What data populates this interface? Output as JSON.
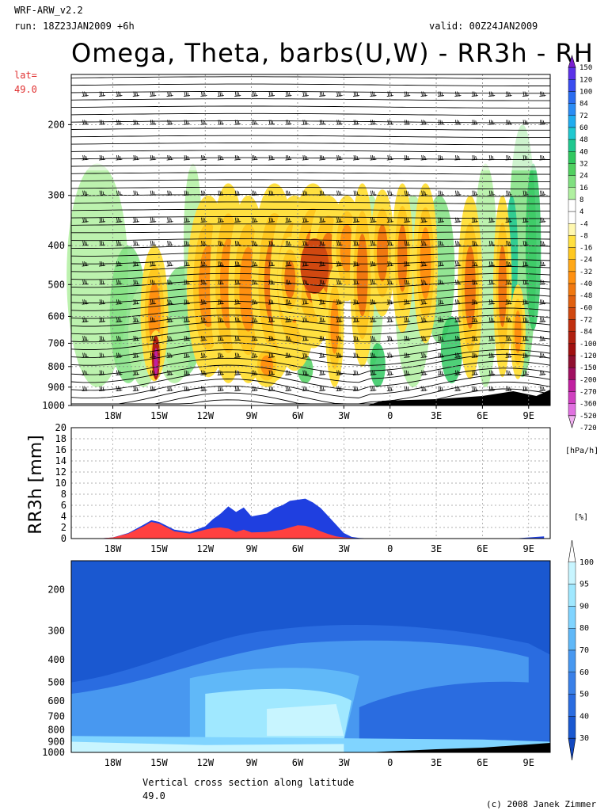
{
  "header": {
    "model": "WRF-ARW_v2.2",
    "run": "run: 18Z23JAN2009 +6h",
    "valid": "valid: 00Z24JAN2009",
    "title": "Omega, Theta, barbs(U,W) - RR3h - RH",
    "lat_label": "lat=",
    "lat_value": "49.0"
  },
  "footer": {
    "caption_line1": "Vertical cross section along latitude",
    "caption_line2": "49.0",
    "copyright": "(c) 2008 Janek Zimmer"
  },
  "colors": {
    "omega_pos_green": "#33cc66",
    "omega_neg_orange": "#ff9900",
    "rain_total": "#1f3fe0",
    "rain_conv": "#ff4040",
    "rh_dark": "#1a5fd0",
    "rh_light": "#c8f5ff"
  },
  "chart_data": [
    {
      "type": "heatmap",
      "title": "Omega, Theta, barbs(U,W)",
      "x_ticks": [
        "18W",
        "15W",
        "12W",
        "9W",
        "6W",
        "3W",
        "0",
        "3E",
        "6E",
        "9E"
      ],
      "y_ticks": [
        "200",
        "300",
        "400",
        "500",
        "600",
        "700",
        "800",
        "900",
        "1000"
      ],
      "y_scale": "log-pressure",
      "grid": true,
      "colorbar": {
        "unit": "[hPa/h]",
        "levels": [
          "150",
          "120",
          "100",
          "84",
          "72",
          "60",
          "48",
          "40",
          "32",
          "24",
          "16",
          "8",
          "4",
          "-4",
          "-8",
          "-16",
          "-24",
          "-32",
          "-40",
          "-48",
          "-60",
          "-72",
          "-84",
          "-100",
          "-120",
          "-150",
          "-200",
          "-270",
          "-360",
          "-520",
          "-720"
        ],
        "colors": [
          "#7a1fd0",
          "#5a32e8",
          "#3a4cf0",
          "#2a6cf0",
          "#2a8cf5",
          "#20acf0",
          "#20c8d0",
          "#20c890",
          "#30c860",
          "#50d060",
          "#80e080",
          "#b0f0a0",
          "#ffffff",
          "#ffffff",
          "#fff8b0",
          "#ffe040",
          "#ffc820",
          "#ffa818",
          "#ff9010",
          "#f07810",
          "#e06010",
          "#d04810",
          "#c03010",
          "#b02010",
          "#a01010",
          "#901030",
          "#a01060",
          "#c020a0",
          "#d040c0",
          "#e070e0",
          "#f0b0f0"
        ]
      }
    },
    {
      "type": "area",
      "ylabel": "RR3h [mm]",
      "ylim": [
        0,
        20
      ],
      "y_ticks": [
        "0",
        "2",
        "4",
        "6",
        "8",
        "10",
        "12",
        "14",
        "16",
        "18",
        "20"
      ],
      "x_ticks": [
        "18W",
        "15W",
        "12W",
        "9W",
        "6W",
        "3W",
        "0",
        "3E",
        "6E",
        "9E"
      ],
      "x": [
        -20,
        -19,
        -18,
        -17,
        -16,
        -15.5,
        -15,
        -14,
        -13,
        -12,
        -11.5,
        -11,
        -10.5,
        -10,
        -9.5,
        -9,
        -8,
        -7.5,
        -7,
        -6.5,
        -6,
        -5.5,
        -5,
        -4.5,
        -4,
        -3.5,
        -3,
        -2.5,
        -2,
        -1,
        0,
        3,
        6,
        8,
        9,
        10
      ],
      "series": [
        {
          "values": [
            0,
            0,
            0.2,
            1.0,
            2.5,
            3.3,
            3.0,
            1.6,
            1.2,
            2.2,
            3.5,
            4.5,
            5.8,
            4.8,
            5.6,
            4.0,
            4.5,
            5.5,
            6.0,
            6.8,
            7.0,
            7.2,
            6.5,
            5.5,
            4.0,
            2.5,
            1.0,
            0.3,
            0.1,
            0,
            0,
            0,
            0,
            0,
            0.2,
            0.4
          ]
        },
        {
          "values": [
            0,
            0,
            0.2,
            0.9,
            2.2,
            3.0,
            2.7,
            1.3,
            0.9,
            1.6,
            1.9,
            2.0,
            1.8,
            1.2,
            1.6,
            1.1,
            1.2,
            1.4,
            1.6,
            2.0,
            2.4,
            2.3,
            1.9,
            1.3,
            0.8,
            0.4,
            0.2,
            0.1,
            0,
            0,
            0,
            0,
            0,
            0,
            0,
            0
          ]
        }
      ],
      "grid": true
    },
    {
      "type": "heatmap",
      "title": "RH",
      "x_ticks": [
        "18W",
        "15W",
        "12W",
        "9W",
        "6W",
        "3W",
        "0",
        "3E",
        "6E",
        "9E"
      ],
      "y_ticks": [
        "200",
        "300",
        "400",
        "500",
        "600",
        "700",
        "800",
        "900",
        "1000"
      ],
      "y_scale": "log-pressure",
      "colorbar": {
        "unit": "[%]",
        "levels": [
          "100",
          "95",
          "90",
          "80",
          "70",
          "60",
          "50",
          "40",
          "30"
        ],
        "colors": [
          "#ffffff",
          "#c8f5ff",
          "#a0e8ff",
          "#80d4ff",
          "#60b8f8",
          "#4898f0",
          "#3a80e8",
          "#2a6ce0",
          "#1a58d0",
          "#1248c0"
        ]
      }
    }
  ]
}
